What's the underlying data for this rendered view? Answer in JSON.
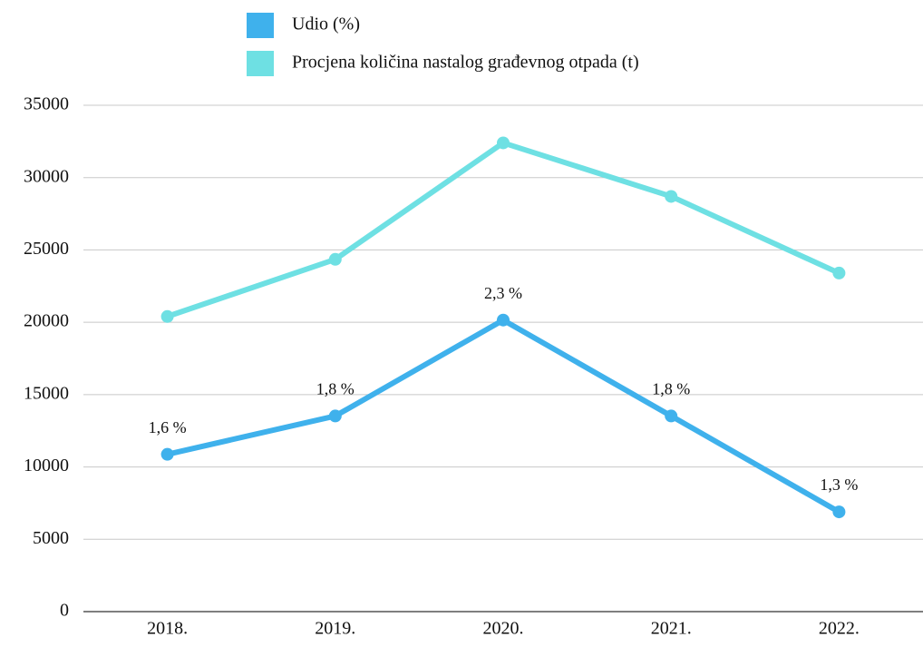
{
  "chart_data": {
    "type": "line",
    "categories": [
      "2018.",
      "2019.",
      "2020.",
      "2021.",
      "2022."
    ],
    "series": [
      {
        "name": "Udio (%)",
        "color": "#3fb1ec",
        "axis": "y2",
        "values": [
          1.6,
          1.8,
          2.3,
          1.8,
          1.3
        ],
        "value_labels": [
          "1,6 %",
          "1,8 %",
          "2,3 %",
          "1,8 %",
          "1,3 %"
        ]
      },
      {
        "name": "Procjena količina nastalog građevnog otpada (t)",
        "color": "#6ee0e3",
        "values": [
          20400,
          24350,
          32400,
          28700,
          23400
        ]
      }
    ],
    "ylim": [
      0,
      35000
    ],
    "yticks": [
      0,
      5000,
      10000,
      15000,
      20000,
      25000,
      30000,
      35000
    ],
    "y2lim": [
      0.78,
      3.42
    ],
    "grid": true,
    "legend": "top"
  }
}
